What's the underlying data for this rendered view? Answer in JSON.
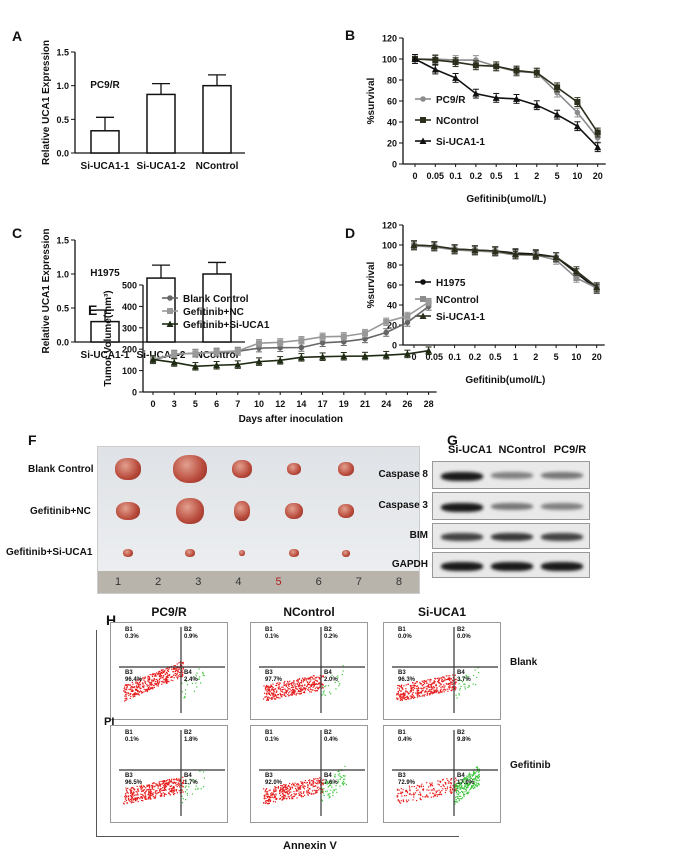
{
  "panels": {
    "A": "A",
    "B": "B",
    "C": "C",
    "D": "D",
    "E": "E",
    "F": "F",
    "G": "G",
    "H": "H"
  },
  "chart_data": [
    {
      "id": "A",
      "type": "bar",
      "title": "PC9/R",
      "ylabel": "Relative UCA1 Expression",
      "categories": [
        "Si-UCA1-1",
        "Si-UCA1-2",
        "NControl"
      ],
      "values": [
        0.33,
        0.87,
        1.0
      ],
      "errors": [
        0.2,
        0.16,
        0.16
      ],
      "ylim": [
        0,
        1.5
      ],
      "yticks": [
        "0.0",
        "0.5",
        "1.0",
        "1.5"
      ]
    },
    {
      "id": "B",
      "type": "line",
      "ylabel": "%survival",
      "xlabel": "Gefitinib(umol/L)",
      "categories": [
        "0",
        "0.05",
        "0.1",
        "0.2",
        "0.5",
        "1",
        "2",
        "5",
        "10",
        "20"
      ],
      "ylim": [
        0,
        120
      ],
      "yticks": [
        "0",
        "20",
        "40",
        "60",
        "80",
        "100",
        "120"
      ],
      "legend": "center-left",
      "series": [
        {
          "name": "PC9/R",
          "marker": "circle",
          "color": "#8c8c8c",
          "values": [
            100,
            100,
            99,
            99,
            93,
            88,
            87,
            68,
            49,
            25
          ]
        },
        {
          "name": "NControl",
          "marker": "square",
          "color": "#2b2f1c",
          "values": [
            100,
            99,
            97,
            94,
            93,
            89,
            87,
            73,
            59,
            30
          ]
        },
        {
          "name": "Si-UCA1-1",
          "marker": "triangle",
          "color": "#111111",
          "values": [
            100,
            90,
            82,
            67,
            63,
            62,
            56,
            47,
            36,
            16
          ]
        }
      ]
    },
    {
      "id": "C",
      "type": "bar",
      "title": "H1975",
      "ylabel": "Relative UCA1 Expression",
      "categories": [
        "Si-UCA1-1",
        "Si-UCA1-2",
        "NControl"
      ],
      "values": [
        0.3,
        0.94,
        1.0
      ],
      "errors": [
        0.17,
        0.19,
        0.17
      ],
      "ylim": [
        0,
        1.5
      ],
      "yticks": [
        "0.0",
        "0.5",
        "1.0",
        "1.5"
      ]
    },
    {
      "id": "D",
      "type": "line",
      "ylabel": "%survival",
      "xlabel": "Gefitinib(umol/L)",
      "categories": [
        "0",
        "0.05",
        "0.1",
        "0.2",
        "0.5",
        "1",
        "2",
        "5",
        "10",
        "20"
      ],
      "ylim": [
        0,
        120
      ],
      "yticks": [
        "0",
        "20",
        "40",
        "60",
        "80",
        "100",
        "120"
      ],
      "legend": "bottom-left",
      "series": [
        {
          "name": "H1975",
          "marker": "circle",
          "color": "#111111",
          "values": [
            100,
            99,
            96,
            95,
            94,
            92,
            91,
            88,
            72,
            56
          ]
        },
        {
          "name": "NControl",
          "marker": "square",
          "color": "#8c8c8c",
          "values": [
            99,
            98,
            95,
            94,
            93,
            90,
            90,
            85,
            67,
            57
          ]
        },
        {
          "name": "Si-UCA1-1",
          "marker": "triangle",
          "color": "#2b2f1c",
          "values": [
            100,
            99,
            96,
            95,
            94,
            91,
            90,
            88,
            74,
            58
          ]
        }
      ]
    },
    {
      "id": "E",
      "type": "line",
      "ylabel": "Tumor Volume(mm³)",
      "xlabel": "Days after inoculation",
      "categories": [
        "0",
        "3",
        "5",
        "6",
        "7",
        "10",
        "12",
        "14",
        "17",
        "19",
        "21",
        "24",
        "26",
        "28"
      ],
      "ylim": [
        0,
        500
      ],
      "yticks": [
        "0",
        "100",
        "200",
        "300",
        "400",
        "500"
      ],
      "legend": "top-left",
      "series": [
        {
          "name": "Blank Control",
          "marker": "circle",
          "color": "#666666",
          "values": [
            150,
            175,
            182,
            185,
            190,
            205,
            207,
            208,
            230,
            235,
            248,
            278,
            325,
            400
          ]
        },
        {
          "name": "Gefitinib+NC",
          "marker": "square",
          "color": "#999999",
          "values": [
            152,
            178,
            180,
            188,
            192,
            228,
            232,
            242,
            258,
            260,
            275,
            328,
            355,
            420
          ]
        },
        {
          "name": "Gefitinib+Si-UCA1",
          "marker": "triangle",
          "color": "#1f2a12",
          "values": [
            152,
            138,
            120,
            125,
            128,
            142,
            148,
            162,
            165,
            167,
            168,
            172,
            178,
            193
          ]
        }
      ]
    }
  ],
  "F": {
    "rows": [
      "Blank Control",
      "Gefitinib+NC",
      "Gefitinib+Si-UCA1"
    ],
    "ruler": [
      "1",
      "2",
      "3",
      "4",
      "5",
      "6",
      "7",
      "8"
    ]
  },
  "G": {
    "columns": [
      "Si-UCA1",
      "NControl",
      "PC9/R"
    ],
    "rows": [
      "Caspase 8",
      "Caspase 3",
      "BIM",
      "GAPDH"
    ]
  },
  "H": {
    "columns": [
      "PC9/R",
      "NControl",
      "Si-UCA1"
    ],
    "rows": [
      "Blank",
      "Gefitinib"
    ],
    "yaxis": "PI",
    "xaxis": "Annexin V",
    "quadrants": [
      "B1",
      "B2",
      "B3",
      "B4"
    ],
    "values": [
      [
        [
          "0.3%",
          "0.9%",
          "96.4%",
          "2.4%"
        ],
        [
          "0.1%",
          "0.2%",
          "97.7%",
          "2.0%"
        ],
        [
          "0.0%",
          "0.0%",
          "96.3%",
          "3.7%"
        ]
      ],
      [
        [
          "0.1%",
          "1.8%",
          "96.5%",
          "1.7%"
        ],
        [
          "0.1%",
          "0.4%",
          "92.0%",
          "7.6%"
        ],
        [
          "0.4%",
          "9.8%",
          "72.9%",
          "17.0%"
        ]
      ]
    ]
  }
}
